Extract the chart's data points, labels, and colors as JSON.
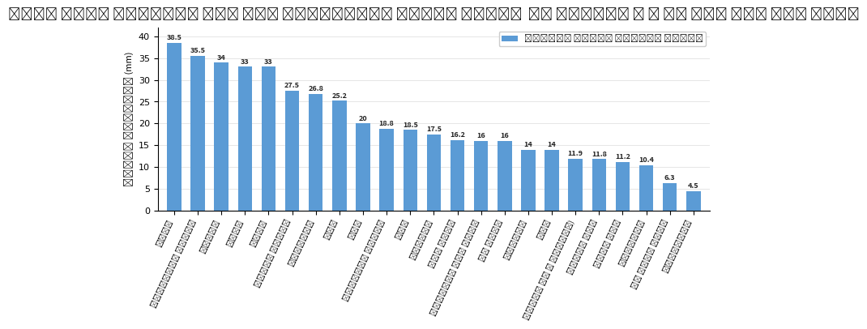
{
  "title": "پایش بارش ایستگاه های مهم بارانسنجی استان تهران  در روزهای ۹ و ۱۰ آذر ماه سال ۱۳۹۹",
  "ylabel": "مقدار بارندگی (mm)",
  "legend_label": "ارتفاع تجمعی سامانه بارشی",
  "bar_color": "#5b9bd5",
  "background_color": "#ffffff",
  "ylim": [
    0,
    42
  ],
  "yticks": [
    0,
    5,
    10,
    15,
    20,
    25,
    30,
    35,
    40
  ],
  "categories": [
    "درکه",
    "امامزاده داوود",
    "شبانه",
    "شمشک",
    "رودک",
    "جنداب البرز",
    "سعدآباد",
    "سگن",
    "هود",
    "مطالعات تهران",
    "نسا",
    "جونقان",
    "باغ آباد",
    "افشاریه شمس آباد",
    "سد آباد",
    "زیبدشت",
    "سرا",
    "آزمون آب و فاضلاب)",
    "لوازم دشت",
    "سمین دشت",
    "نیاوران",
    "سد امیر کبیر",
    "فیروزکوه"
  ],
  "values": [
    38.5,
    35.5,
    34,
    33,
    33,
    27.5,
    26.8,
    25.2,
    20,
    18.8,
    18.5,
    17.5,
    16.2,
    16,
    16,
    14,
    14,
    11.9,
    11.8,
    11.2,
    10.4,
    6.3,
    4.5
  ]
}
